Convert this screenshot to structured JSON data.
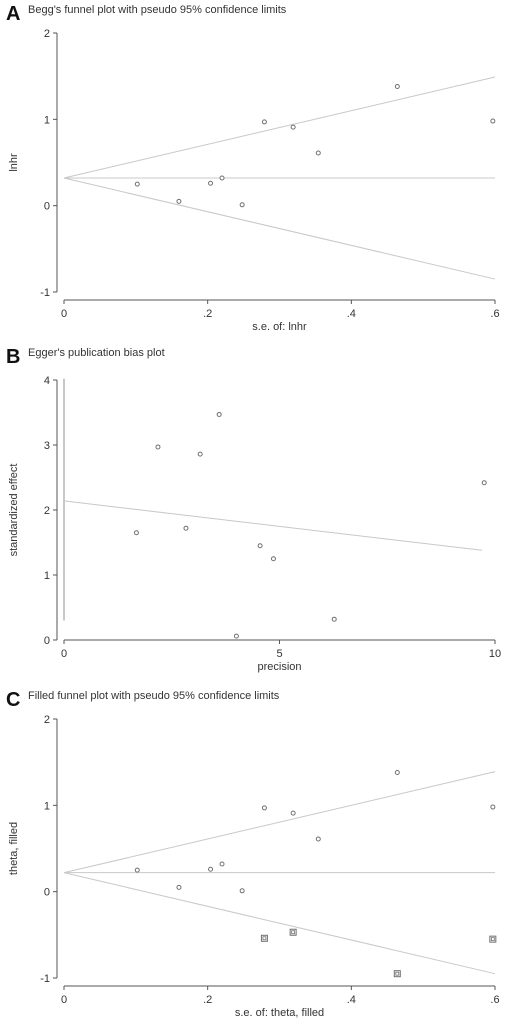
{
  "chart_data": [
    {
      "panel": "A",
      "type": "scatter",
      "title": "Begg's funnel plot with pseudo 95% confidence limits",
      "xlabel": "s.e. of: lnhr",
      "ylabel": "lnhr",
      "xlim": [
        0,
        0.6
      ],
      "ylim": [
        -1,
        2
      ],
      "xticks": [
        0,
        0.2,
        0.4,
        0.6
      ],
      "xtick_labels": [
        "0",
        ".2",
        ".4",
        ".6"
      ],
      "yticks": [
        -1,
        0,
        1,
        2
      ],
      "ytick_labels": [
        "-1",
        "0",
        "1",
        "2"
      ],
      "pooled_effect": 0.32,
      "funnel_limits_at_max_se": {
        "se": 0.6,
        "upper": 1.49,
        "lower": -0.85
      },
      "series": [
        {
          "marker": "circle",
          "points": [
            [
              0.102,
              0.25
            ],
            [
              0.16,
              0.05
            ],
            [
              0.204,
              0.26
            ],
            [
              0.22,
              0.32
            ],
            [
              0.248,
              0.01
            ],
            [
              0.279,
              0.97
            ],
            [
              0.319,
              0.91
            ],
            [
              0.354,
              0.61
            ],
            [
              0.464,
              1.38
            ],
            [
              0.597,
              0.98
            ]
          ]
        }
      ]
    },
    {
      "panel": "B",
      "type": "scatter",
      "title": "Egger's publication bias plot",
      "xlabel": "precision",
      "ylabel": "standardized effect",
      "xlim": [
        0,
        10
      ],
      "ylim": [
        0,
        4
      ],
      "xticks": [
        0,
        5,
        10
      ],
      "xtick_labels": [
        "0",
        "5",
        "10"
      ],
      "yticks": [
        0,
        1,
        2,
        3,
        4
      ],
      "ytick_labels": [
        "0",
        "1",
        "2",
        "3",
        "4"
      ],
      "regression_line": {
        "intercept": 2.14,
        "x_end": 9.7,
        "y_end": 1.38
      },
      "intercept_ci": [
        0.3,
        4.02
      ],
      "series": [
        {
          "marker": "circle",
          "points": [
            [
              1.68,
              1.65
            ],
            [
              2.18,
              2.97
            ],
            [
              2.83,
              1.72
            ],
            [
              3.16,
              2.86
            ],
            [
              3.6,
              3.47
            ],
            [
              4.0,
              0.06
            ],
            [
              4.55,
              1.45
            ],
            [
              4.86,
              1.25
            ],
            [
              6.27,
              0.32
            ],
            [
              9.75,
              2.42
            ]
          ]
        }
      ]
    },
    {
      "panel": "C",
      "type": "scatter",
      "title": "Filled funnel plot with pseudo 95% confidence limits",
      "xlabel": "s.e. of: theta, filled",
      "ylabel": "theta, filled",
      "xlim": [
        0,
        0.6
      ],
      "ylim": [
        -1,
        2
      ],
      "xticks": [
        0,
        0.2,
        0.4,
        0.6
      ],
      "xtick_labels": [
        "0",
        ".2",
        ".4",
        ".6"
      ],
      "yticks": [
        -1,
        0,
        1,
        2
      ],
      "ytick_labels": [
        "-1",
        "0",
        "1",
        "2"
      ],
      "pooled_effect": 0.22,
      "funnel_limits_at_max_se": {
        "se": 0.6,
        "upper": 1.39,
        "lower": -0.95
      },
      "series": [
        {
          "marker": "circle",
          "points": [
            [
              0.102,
              0.25
            ],
            [
              0.16,
              0.05
            ],
            [
              0.204,
              0.26
            ],
            [
              0.22,
              0.32
            ],
            [
              0.248,
              0.01
            ],
            [
              0.279,
              0.97
            ],
            [
              0.319,
              0.91
            ],
            [
              0.354,
              0.61
            ],
            [
              0.464,
              1.38
            ],
            [
              0.597,
              0.98
            ]
          ]
        },
        {
          "marker": "filled-square",
          "points": [
            [
              0.279,
              -0.54
            ],
            [
              0.319,
              -0.47
            ],
            [
              0.464,
              -0.95
            ],
            [
              0.597,
              -0.55
            ]
          ]
        }
      ]
    }
  ],
  "colors": {
    "axis": "#555555",
    "line": "#c8c8c8",
    "marker": "#707070"
  }
}
